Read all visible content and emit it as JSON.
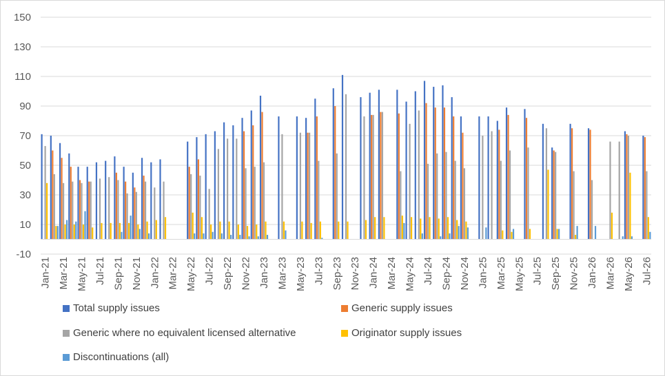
{
  "chart_data": {
    "type": "bar",
    "title": "",
    "xlabel": "",
    "ylabel": "",
    "ylim": [
      -10,
      150
    ],
    "yticks": [
      -10,
      10,
      30,
      50,
      70,
      90,
      110,
      130,
      150
    ],
    "grid": true,
    "legend_position": "bottom",
    "tick_label_every": 2,
    "categories": [
      "Jan-21",
      "Feb-21",
      "Mar-21",
      "Apr-21",
      "May-21",
      "Jun-21",
      "Jul-21",
      "Aug-21",
      "Sep-21",
      "Oct-21",
      "Nov-21",
      "Dec-21",
      "Jan-22",
      "Feb-22",
      "Mar-22",
      "Apr-22",
      "May-22",
      "Jun-22",
      "Jul-22",
      "Aug-22",
      "Sep-22",
      "Oct-22",
      "Nov-22",
      "Dec-22",
      "Jan-23",
      "Feb-23",
      "Mar-23",
      "Apr-23",
      "May-23",
      "Jun-23",
      "Jul-23",
      "Aug-23",
      "Sep-23",
      "Oct-23",
      "Nov-23",
      "Dec-23",
      "Jan-24",
      "Feb-24",
      "Mar-24",
      "Apr-24",
      "May-24",
      "Jun-24",
      "Jul-24",
      "Aug-24",
      "Sep-24",
      "Oct-24",
      "Nov-24",
      "Dec-24",
      "Jan-25",
      "Feb-25",
      "Mar-25",
      "Apr-25",
      "May-25",
      "Jun-25",
      "Jul-25",
      "Aug-25",
      "Sep-25",
      "Oct-25",
      "Nov-25",
      "Dec-25",
      "Jan-26",
      "Feb-26",
      "Mar-26",
      "Apr-26",
      "May-26",
      "Jun-26",
      "Jul-26"
    ],
    "series": [
      {
        "name": "Total supply issues",
        "color": "#4472c4",
        "values": [
          71,
          70,
          65,
          58,
          49,
          49,
          52,
          53,
          56,
          49,
          45,
          55,
          52,
          54,
          null,
          null,
          66,
          69,
          71,
          73,
          79,
          77,
          82,
          87,
          97,
          null,
          83,
          null,
          83,
          82,
          95,
          null,
          102,
          111,
          null,
          96,
          99,
          101,
          null,
          101,
          93,
          100,
          107,
          103,
          104,
          96,
          83,
          null,
          83,
          83,
          80,
          89,
          null,
          88,
          null,
          78,
          62,
          null,
          78,
          null,
          75,
          null,
          null,
          null,
          73,
          null,
          70
        ]
      },
      {
        "name": "Generic supply issues",
        "color": "#ed7d31",
        "values": [
          null,
          60,
          55,
          49,
          40,
          39,
          null,
          null,
          45,
          39,
          35,
          43,
          null,
          null,
          null,
          null,
          49,
          54,
          null,
          null,
          null,
          null,
          73,
          77,
          86,
          null,
          null,
          null,
          null,
          72,
          83,
          null,
          90,
          null,
          null,
          null,
          84,
          86,
          null,
          85,
          null,
          null,
          92,
          89,
          89,
          83,
          72,
          null,
          null,
          null,
          74,
          84,
          null,
          82,
          null,
          null,
          60,
          null,
          75,
          null,
          74,
          null,
          null,
          null,
          71,
          null,
          69
        ]
      },
      {
        "name": "Generic where no equivalent licensed alternative",
        "color": "#a5a5a5",
        "values": [
          63,
          44,
          38,
          39,
          38,
          39,
          41,
          42,
          40,
          31,
          32,
          39,
          35,
          39,
          null,
          null,
          44,
          43,
          34,
          61,
          68,
          68,
          48,
          49,
          52,
          null,
          71,
          null,
          72,
          72,
          53,
          null,
          58,
          98,
          null,
          83,
          84,
          86,
          null,
          46,
          78,
          87,
          51,
          58,
          59,
          53,
          48,
          null,
          70,
          73,
          53,
          60,
          null,
          62,
          null,
          75,
          59,
          null,
          46,
          null,
          40,
          null,
          66,
          66,
          70,
          null,
          46
        ]
      },
      {
        "name": "Originator supply issues",
        "color": "#ffc000",
        "values": [
          38,
          9,
          10,
          10,
          10,
          8,
          11,
          11,
          11,
          11,
          10,
          12,
          13,
          15,
          null,
          null,
          18,
          15,
          10,
          12,
          12,
          10,
          9,
          10,
          12,
          null,
          12,
          null,
          12,
          11,
          12,
          null,
          12,
          12,
          null,
          13,
          15,
          15,
          null,
          16,
          15,
          14,
          15,
          14,
          15,
          13,
          12,
          null,
          null,
          null,
          6,
          5,
          null,
          7,
          null,
          47,
          7,
          null,
          3,
          null,
          null,
          null,
          18,
          null,
          45,
          null,
          15
        ]
      },
      {
        "name": "Discontinuations (all)",
        "color": "#5b9bd5",
        "values": [
          null,
          9,
          13,
          12,
          19,
          null,
          null,
          null,
          5,
          16,
          7,
          4,
          null,
          null,
          null,
          null,
          4,
          4,
          5,
          4,
          3,
          3,
          2,
          2,
          3,
          null,
          6,
          null,
          null,
          null,
          1,
          null,
          null,
          null,
          null,
          null,
          null,
          null,
          null,
          11,
          null,
          4,
          null,
          2,
          4,
          9,
          8,
          null,
          8,
          null,
          null,
          7,
          null,
          null,
          null,
          null,
          7,
          null,
          9,
          null,
          9,
          null,
          null,
          2,
          2,
          null,
          5
        ]
      }
    ]
  }
}
